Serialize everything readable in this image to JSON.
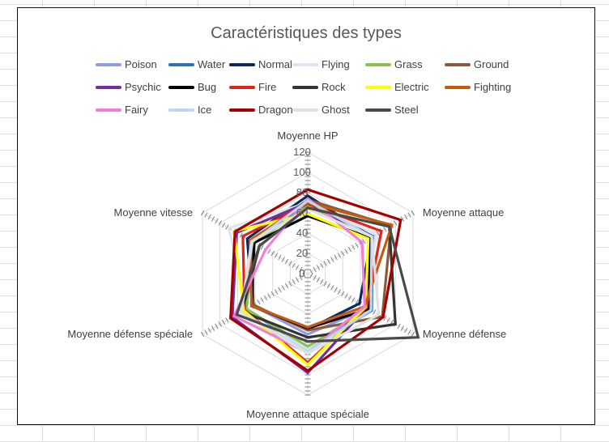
{
  "chart_data": {
    "type": "radar",
    "title": "Caractéristiques des types",
    "axes": [
      "Moyenne HP",
      "Moyenne attaque",
      "Moyenne défense",
      "Moyenne attaque spéciale",
      "Moyenne défense spéciale",
      "Moyenne vitesse"
    ],
    "rlim": [
      0,
      120
    ],
    "ticks": [
      "0",
      "20",
      "40",
      "60",
      "80",
      "100",
      "120"
    ],
    "tick_values": [
      0,
      20,
      40,
      60,
      80,
      100,
      120
    ],
    "grid": true,
    "legend_position": "top",
    "series": [
      {
        "name": "Poison",
        "color": "#8e9ce6",
        "values": [
          67,
          74,
          68,
          60,
          63,
          63
        ]
      },
      {
        "name": "Water",
        "color": "#2e75b6",
        "values": [
          70,
          74,
          73,
          74,
          70,
          64
        ]
      },
      {
        "name": "Normal",
        "color": "#0b2a5c",
        "values": [
          77,
          73,
          59,
          55,
          63,
          69
        ]
      },
      {
        "name": "Flying",
        "color": "#dce6f2",
        "values": [
          70,
          78,
          66,
          74,
          69,
          90
        ]
      },
      {
        "name": "Grass",
        "color": "#8cc152",
        "values": [
          67,
          73,
          70,
          72,
          70,
          61
        ]
      },
      {
        "name": "Ground",
        "color": "#8b5a3c",
        "values": [
          73,
          95,
          85,
          56,
          62,
          64
        ]
      },
      {
        "name": "Psychic",
        "color": "#7030a0",
        "values": [
          70,
          71,
          67,
          98,
          86,
          81
        ]
      },
      {
        "name": "Bug",
        "color": "#000000",
        "values": [
          57,
          71,
          70,
          54,
          64,
          61
        ]
      },
      {
        "name": "Fire",
        "color": "#e2231a",
        "values": [
          69,
          84,
          67,
          88,
          72,
          74
        ]
      },
      {
        "name": "Rock",
        "color": "#333333",
        "values": [
          65,
          93,
          100,
          63,
          75,
          55
        ]
      },
      {
        "name": "Electric",
        "color": "#ffff00",
        "values": [
          59,
          69,
          66,
          90,
          73,
          84
        ]
      },
      {
        "name": "Fighting",
        "color": "#c55a11",
        "values": [
          70,
          96,
          65,
          53,
          64,
          66
        ]
      },
      {
        "name": "Fairy",
        "color": "#f07ed6",
        "values": [
          74,
          62,
          65,
          78,
          84,
          48
        ]
      },
      {
        "name": "Ice",
        "color": "#bdd7ee",
        "values": [
          72,
          73,
          72,
          77,
          76,
          63
        ]
      },
      {
        "name": "Dragon",
        "color": "#a50000",
        "values": [
          83,
          106,
          86,
          96,
          88,
          83
        ]
      },
      {
        "name": "Ghost",
        "color": "#e0e0e0",
        "values": [
          64,
          73,
          81,
          79,
          76,
          64
        ]
      },
      {
        "name": "Steel",
        "color": "#4a4a4a",
        "values": [
          65,
          93,
          126,
          67,
          81,
          55
        ]
      }
    ]
  }
}
